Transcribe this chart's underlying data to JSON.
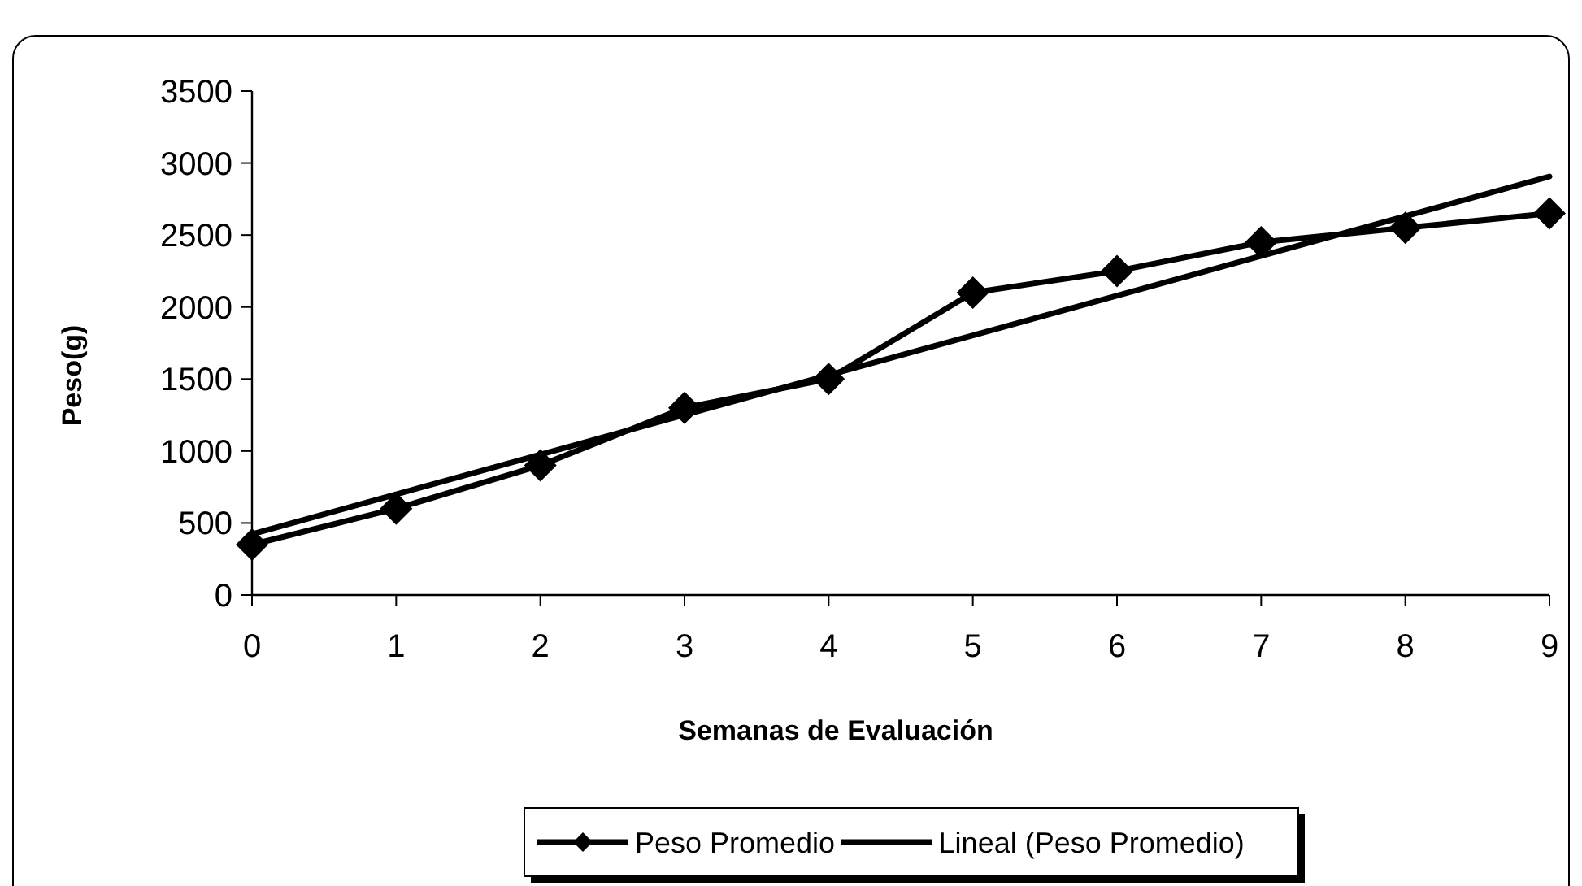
{
  "chart_data": {
    "type": "line",
    "xlabel": "Semanas de Evaluación",
    "ylabel": "Peso(g)",
    "x": [
      0,
      1,
      2,
      3,
      4,
      5,
      6,
      7,
      8,
      9
    ],
    "series": [
      {
        "name": "Peso Promedio",
        "color": "#000000",
        "marker": "diamond",
        "values": [
          350,
          600,
          900,
          1300,
          1500,
          2100,
          2250,
          2450,
          2550,
          2650
        ]
      },
      {
        "name": "Lineal (Peso Promedio)",
        "color": "#000000",
        "marker": "none",
        "x": [
          0,
          9
        ],
        "values": [
          423,
          2907
        ]
      }
    ],
    "xlim": [
      0,
      9
    ],
    "xticks": [
      0,
      1,
      2,
      3,
      4,
      5,
      6,
      7,
      8,
      9
    ],
    "ylim": [
      0,
      3500
    ],
    "yticks": [
      0,
      500,
      1000,
      1500,
      2000,
      2500,
      3000,
      3500
    ],
    "grid": false,
    "legend": "bottom",
    "line_style": "solid"
  }
}
